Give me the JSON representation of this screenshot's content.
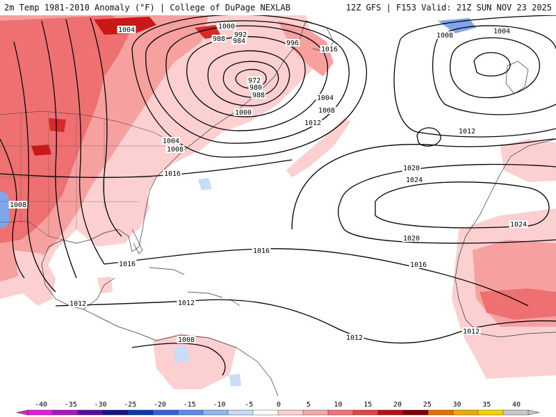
{
  "header": {
    "left_title": "2m Temp 1981-2010 Anomaly (°F) | College of DuPage NEXLAB",
    "right_title": "12Z GFS | F153 Valid: 21Z SUN NOV 23 2025"
  },
  "isobar_labels": [
    "1004",
    "1000",
    "992",
    "988",
    "984",
    "996",
    "1016",
    "972",
    "980",
    "988",
    "1004",
    "1008",
    "1000",
    "1012",
    "1004",
    "1008",
    "1016",
    "1008",
    "1016",
    "1016",
    "1012",
    "1012",
    "1008",
    "1012",
    "1008",
    "1004",
    "1012",
    "1020",
    "1024",
    "1024",
    "1020",
    "1016",
    "1012"
  ],
  "legend": {
    "ticks": [
      "-40",
      "-35",
      "-30",
      "-25",
      "-20",
      "-15",
      "-10",
      "-5",
      "0",
      "5",
      "10",
      "15",
      "20",
      "25",
      "30",
      "35",
      "40"
    ],
    "colors": [
      "#e11fd8",
      "#a41ab8",
      "#5a0f9c",
      "#15157a",
      "#0b3aa6",
      "#2f63d6",
      "#5a8de8",
      "#8fb6f0",
      "#c4dcf8",
      "#ffffff",
      "#ffd0d0",
      "#f6a6a6",
      "#ef7676",
      "#e04545",
      "#b81010",
      "#7a0000",
      "#e07000",
      "#f0a800",
      "#f8d000",
      "#c8c8c8"
    ]
  },
  "colors": {
    "warm_light": "#fcd0d0",
    "warm_mid": "#f6a0a0",
    "warm_strong": "#ef7070",
    "warm_deep": "#c81818",
    "cool_light": "#c8dcf8",
    "cool_mid": "#7fa6ea",
    "contour": "#000000",
    "coast": "#333333"
  }
}
